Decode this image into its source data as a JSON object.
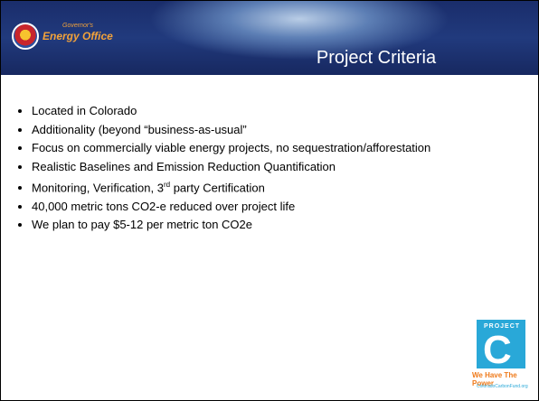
{
  "header": {
    "logo_small": "Governor's",
    "logo": "Energy Office",
    "title": "Project Criteria"
  },
  "bullets": [
    "Located in Colorado",
    "Additionality (beyond “business-as-usual”",
    "Focus on commercially viable energy projects, no sequestration/afforestation",
    "Realistic Baselines and Emission Reduction Quantification",
    [
      "Monitoring, Verification, 3",
      "rd",
      " party Certification"
    ],
    "40,000 metric tons CO2-e reduced over project life",
    "We plan to pay $5-12 per metric ton CO2e"
  ],
  "footer_logo": {
    "word": "PROJECT",
    "letter": "C",
    "slogan": "We Have The Power",
    "url": "ColoradoCarbonFund.org"
  }
}
